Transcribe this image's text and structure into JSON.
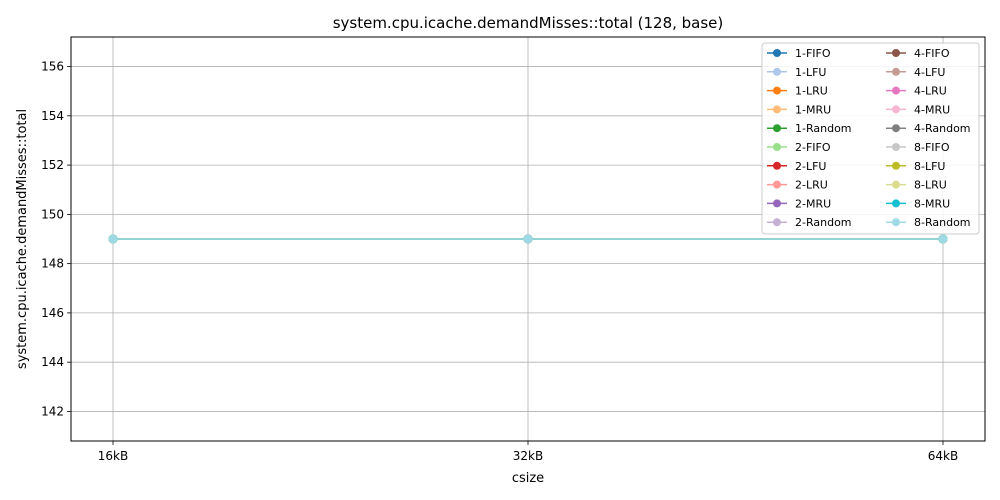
{
  "chart_data": {
    "type": "line",
    "title": "system.cpu.icache.demandMisses::total (128, base)",
    "xlabel": "csize",
    "ylabel": "system.cpu.icache.demandMisses::total",
    "categories": [
      "16kB",
      "32kB",
      "64kB"
    ],
    "ylim": [
      140.8,
      157.2
    ],
    "yticks": [
      142,
      144,
      146,
      148,
      150,
      152,
      154,
      156
    ],
    "grid": true,
    "legend_position": "top-right",
    "legend_columns": 2,
    "series": [
      {
        "name": "1-FIFO",
        "color": "#1f77b4",
        "values": [
          149,
          149,
          149
        ]
      },
      {
        "name": "1-LFU",
        "color": "#aec7e8",
        "values": [
          149,
          149,
          149
        ]
      },
      {
        "name": "1-LRU",
        "color": "#ff7f0e",
        "values": [
          149,
          149,
          149
        ]
      },
      {
        "name": "1-MRU",
        "color": "#ffbb78",
        "values": [
          149,
          149,
          149
        ]
      },
      {
        "name": "1-Random",
        "color": "#2ca02c",
        "values": [
          149,
          149,
          149
        ]
      },
      {
        "name": "2-FIFO",
        "color": "#98df8a",
        "values": [
          149,
          149,
          149
        ]
      },
      {
        "name": "2-LFU",
        "color": "#d62728",
        "values": [
          149,
          149,
          149
        ]
      },
      {
        "name": "2-LRU",
        "color": "#ff9896",
        "values": [
          149,
          149,
          149
        ]
      },
      {
        "name": "2-MRU",
        "color": "#9467bd",
        "values": [
          149,
          149,
          149
        ]
      },
      {
        "name": "2-Random",
        "color": "#c5b0d5",
        "values": [
          149,
          149,
          149
        ]
      },
      {
        "name": "4-FIFO",
        "color": "#8c564b",
        "values": [
          149,
          149,
          149
        ]
      },
      {
        "name": "4-LFU",
        "color": "#c49c94",
        "values": [
          149,
          149,
          149
        ]
      },
      {
        "name": "4-LRU",
        "color": "#e377c2",
        "values": [
          149,
          149,
          149
        ]
      },
      {
        "name": "4-MRU",
        "color": "#f7b6d2",
        "values": [
          149,
          149,
          149
        ]
      },
      {
        "name": "4-Random",
        "color": "#7f7f7f",
        "values": [
          149,
          149,
          149
        ]
      },
      {
        "name": "8-FIFO",
        "color": "#c7c7c7",
        "values": [
          149,
          149,
          149
        ]
      },
      {
        "name": "8-LFU",
        "color": "#bcbd22",
        "values": [
          149,
          149,
          149
        ]
      },
      {
        "name": "8-LRU",
        "color": "#dbdb8d",
        "values": [
          149,
          149,
          149
        ]
      },
      {
        "name": "8-MRU",
        "color": "#17becf",
        "values": [
          149,
          149,
          149
        ]
      },
      {
        "name": "8-Random",
        "color": "#9edae5",
        "values": [
          149,
          149,
          149
        ]
      }
    ]
  }
}
